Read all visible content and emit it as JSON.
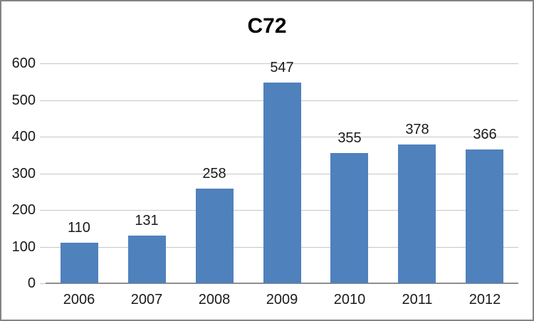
{
  "window": {
    "background_color": "#FFFFFF",
    "border_color": "#848484"
  },
  "chart_data": {
    "type": "bar",
    "title": "C72",
    "categories": [
      "2006",
      "2007",
      "2008",
      "2009",
      "2010",
      "2011",
      "2012"
    ],
    "values": [
      110,
      131,
      258,
      547,
      355,
      378,
      366
    ],
    "xlabel": "",
    "ylabel": "",
    "ylim": [
      0,
      600
    ],
    "yticks": [
      0,
      100,
      200,
      300,
      400,
      500,
      600
    ],
    "grid": "horizontal",
    "legend": "none",
    "data_labels_shown": true,
    "colors": {
      "bar": "#4F81BD",
      "gridline": "#C6C6C6",
      "axis_line": "#8E8E8E",
      "tick_label": "#1A1A1A",
      "data_label": "#1A1A1A",
      "title": "#000000"
    }
  }
}
